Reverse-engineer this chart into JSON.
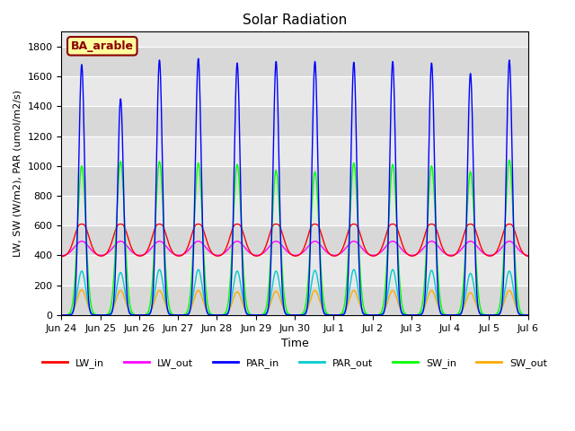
{
  "title": "Solar Radiation",
  "xlabel": "Time",
  "ylabel": "LW, SW (W/m2), PAR (umol/m2/s)",
  "annotation": "BA_arable",
  "ylim": [
    0,
    1900
  ],
  "yticks": [
    0,
    200,
    400,
    600,
    800,
    1000,
    1200,
    1400,
    1600,
    1800
  ],
  "xtick_labels": [
    "Jun 24",
    "Jun 25",
    "Jun 26",
    "Jun 27",
    "Jun 28",
    "Jun 29",
    "Jun 30",
    "Jul 1",
    "Jul 2",
    "Jul 3",
    "Jul 4",
    "Jul 5",
    "Jul 6"
  ],
  "colors": {
    "LW_in": "#ff0000",
    "LW_out": "#ff00ff",
    "PAR_in": "#0000ff",
    "PAR_out": "#00cccc",
    "SW_in": "#00ff00",
    "SW_out": "#ffaa00"
  },
  "background_color": "#e8e8e8",
  "grid_color": "#ffffff",
  "par_in_peaks": [
    1680,
    1450,
    1710,
    1720,
    1690,
    1700,
    1700,
    1695,
    1700,
    1690,
    1620,
    1710
  ],
  "par_out_peaks": [
    295,
    285,
    305,
    305,
    295,
    295,
    300,
    305,
    305,
    300,
    280,
    295
  ],
  "sw_in_peaks": [
    1000,
    1030,
    1030,
    1020,
    1010,
    970,
    960,
    1020,
    1010,
    1000,
    960,
    1040
  ],
  "sw_out_peaks": [
    170,
    165,
    165,
    165,
    155,
    160,
    165,
    165,
    165,
    165,
    150,
    165
  ],
  "lw_in_base": 390,
  "lw_in_day_drop": 30,
  "lw_in_day_peak": 630,
  "lw_out_base": 395,
  "lw_out_day_peak": 490
}
